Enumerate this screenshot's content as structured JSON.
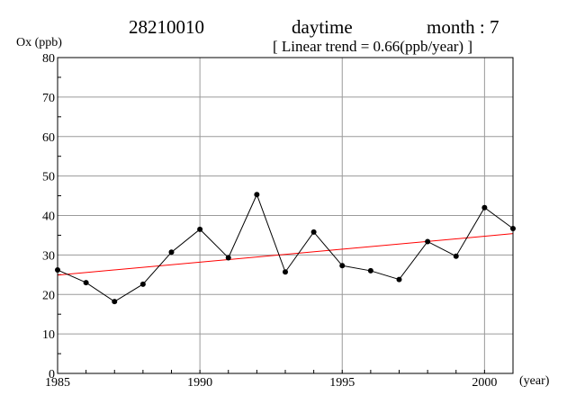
{
  "header": {
    "station_id": "28210010",
    "period": "daytime",
    "month_label": "month : 7",
    "trend_text": "[ Linear trend = 0.66(ppb/year) ]"
  },
  "chart_data": {
    "type": "line",
    "title": "",
    "ylabel": "Ox (ppb)",
    "xlabel": "(year)",
    "xlim": [
      1985,
      2001
    ],
    "ylim": [
      0,
      80
    ],
    "xticks": [
      1985,
      1990,
      1995,
      2000
    ],
    "yticks": [
      0,
      10,
      20,
      30,
      40,
      50,
      60,
      70,
      80
    ],
    "grid": true,
    "series": [
      {
        "name": "",
        "color": "#000000",
        "marker": "circle",
        "x": [
          1985,
          1986,
          1987,
          1988,
          1989,
          1990,
          1991,
          1992,
          1993,
          1994,
          1995,
          1996,
          1997,
          1998,
          1999,
          2000,
          2001
        ],
        "y": [
          26.2,
          23.0,
          18.2,
          22.6,
          30.7,
          36.5,
          29.3,
          45.3,
          25.7,
          35.8,
          27.3,
          26.0,
          23.8,
          33.4,
          29.7,
          42.0,
          36.7
        ]
      }
    ],
    "trend_line": {
      "color": "#ff0000",
      "slope": 0.66,
      "x": [
        1985,
        2001
      ],
      "y": [
        24.9,
        35.4
      ]
    }
  }
}
